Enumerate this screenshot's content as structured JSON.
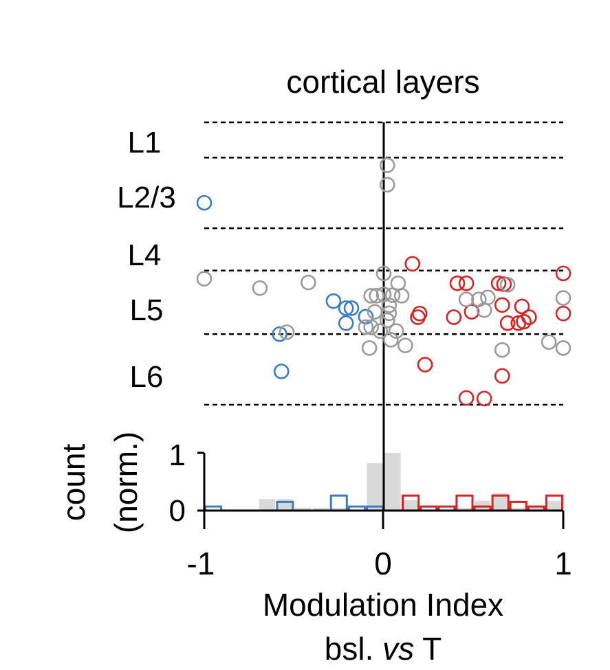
{
  "colors": {
    "negative": "#3a7cc4",
    "positive": "#d42424",
    "nonsig": "#9a9a9a",
    "nonsig_fill": "#d9d9d9",
    "axis": "#000000"
  },
  "chart_data": [
    {
      "type": "scatter",
      "title": "cortical layers",
      "xlim": [
        -1,
        1
      ],
      "ylim": [
        0,
        1
      ],
      "y_direction": "depth increases downward",
      "layer_labels": [
        "L1",
        "L2/3",
        "L4",
        "L5",
        "L6"
      ],
      "layer_boundaries": [
        0.0,
        0.125,
        0.375,
        0.525,
        0.75,
        1.0
      ],
      "series": [
        {
          "points": [
            {
              "x": -1.0,
              "y": 0.285
            },
            {
              "x": -0.28,
              "y": 0.633
            },
            {
              "x": -0.21,
              "y": 0.658
            },
            {
              "x": -0.18,
              "y": 0.658
            },
            {
              "x": -0.1,
              "y": 0.688
            },
            {
              "x": -0.21,
              "y": 0.711
            },
            {
              "x": -0.58,
              "y": 0.75
            },
            {
              "x": -0.57,
              "y": 0.882
            }
          ]
        },
        {
          "points": [
            {
              "x": 0.16,
              "y": 0.501
            },
            {
              "x": 0.46,
              "y": 0.57
            },
            {
              "x": 0.41,
              "y": 0.57
            },
            {
              "x": 0.64,
              "y": 0.57
            },
            {
              "x": 0.67,
              "y": 0.573
            },
            {
              "x": 1.0,
              "y": 0.535
            },
            {
              "x": 0.66,
              "y": 0.647
            },
            {
              "x": 0.77,
              "y": 0.652
            },
            {
              "x": 0.49,
              "y": 0.671
            },
            {
              "x": 0.2,
              "y": 0.677
            },
            {
              "x": 0.19,
              "y": 0.69
            },
            {
              "x": 1.0,
              "y": 0.677
            },
            {
              "x": 0.39,
              "y": 0.69
            },
            {
              "x": 0.81,
              "y": 0.69
            },
            {
              "x": 0.78,
              "y": 0.706
            },
            {
              "x": 0.69,
              "y": 0.711
            },
            {
              "x": 0.75,
              "y": 0.711
            },
            {
              "x": 0.23,
              "y": 0.858
            },
            {
              "x": 0.66,
              "y": 0.898
            },
            {
              "x": 0.46,
              "y": 0.976
            },
            {
              "x": 0.56,
              "y": 0.978
            }
          ]
        },
        {
          "points": [
            {
              "x": 0.02,
              "y": 0.152
            },
            {
              "x": 0.02,
              "y": 0.221
            },
            {
              "x": -1.0,
              "y": 0.554
            },
            {
              "x": -0.69,
              "y": 0.587
            },
            {
              "x": -0.42,
              "y": 0.567
            },
            {
              "x": 0.0,
              "y": 0.535
            },
            {
              "x": 0.08,
              "y": 0.57
            },
            {
              "x": 0.69,
              "y": 0.575
            },
            {
              "x": 0.58,
              "y": 0.62
            },
            {
              "x": 0.53,
              "y": 0.627
            },
            {
              "x": 0.46,
              "y": 0.627
            },
            {
              "x": 1.0,
              "y": 0.622
            },
            {
              "x": -0.07,
              "y": 0.614
            },
            {
              "x": -0.04,
              "y": 0.614
            },
            {
              "x": 0.0,
              "y": 0.609
            },
            {
              "x": 0.05,
              "y": 0.612
            },
            {
              "x": 0.1,
              "y": 0.614
            },
            {
              "x": 0.03,
              "y": 0.648
            },
            {
              "x": 0.56,
              "y": 0.665
            },
            {
              "x": -0.05,
              "y": 0.671
            },
            {
              "x": 0.03,
              "y": 0.676
            },
            {
              "x": 0.02,
              "y": 0.701
            },
            {
              "x": -0.07,
              "y": 0.725
            },
            {
              "x": -0.1,
              "y": 0.725
            },
            {
              "x": -0.02,
              "y": 0.739
            },
            {
              "x": 0.07,
              "y": 0.739
            },
            {
              "x": -0.54,
              "y": 0.743
            },
            {
              "x": 0.04,
              "y": 0.77
            },
            {
              "x": 0.12,
              "y": 0.79
            },
            {
              "x": -0.08,
              "y": 0.799
            },
            {
              "x": 0.66,
              "y": 0.806
            },
            {
              "x": 0.92,
              "y": 0.778
            },
            {
              "x": 1.0,
              "y": 0.799
            }
          ]
        }
      ]
    },
    {
      "type": "bar",
      "xlabel": "Modulation Index",
      "xlabel2": "bsl. vs T",
      "ylabel": "count",
      "ylabel2": "(norm.)",
      "xlim": [
        -1,
        1
      ],
      "ylim": [
        0,
        1
      ],
      "xticks": [
        "-1",
        "0",
        "1"
      ],
      "yticks": [
        "0",
        "1"
      ],
      "bin_width": 0.1,
      "series": [
        {
          "bins": [
            {
              "x": -0.7,
              "value": 0.2
            },
            {
              "x": -0.6,
              "value": 0.2
            },
            {
              "x": -0.5,
              "value": 0.05
            },
            {
              "x": -0.4,
              "value": 0.05
            },
            {
              "x": -0.3,
              "value": 0.05
            },
            {
              "x": -0.1,
              "value": 0.82
            },
            {
              "x": 0.0,
              "value": 1.0
            },
            {
              "x": 0.1,
              "value": 0.18
            },
            {
              "x": 0.4,
              "value": 0.05
            },
            {
              "x": 0.5,
              "value": 0.17
            },
            {
              "x": 0.6,
              "value": 0.3
            },
            {
              "x": 0.7,
              "value": 0.05
            },
            {
              "x": 0.8,
              "value": 0.05
            },
            {
              "x": 0.9,
              "value": 0.17
            }
          ]
        },
        {
          "bins": [
            {
              "x": -1.0,
              "value": 0.07
            },
            {
              "x": -0.6,
              "value": 0.15
            },
            {
              "x": -0.3,
              "value": 0.26
            },
            {
              "x": -0.2,
              "value": 0.07
            },
            {
              "x": -0.1,
              "value": 0.07
            }
          ]
        },
        {
          "bins": [
            {
              "x": 0.1,
              "value": 0.26
            },
            {
              "x": 0.2,
              "value": 0.07
            },
            {
              "x": 0.3,
              "value": 0.07
            },
            {
              "x": 0.4,
              "value": 0.26
            },
            {
              "x": 0.5,
              "value": 0.07
            },
            {
              "x": 0.6,
              "value": 0.26
            },
            {
              "x": 0.7,
              "value": 0.15
            },
            {
              "x": 0.8,
              "value": 0.07
            },
            {
              "x": 0.9,
              "value": 0.26
            }
          ]
        }
      ]
    }
  ]
}
